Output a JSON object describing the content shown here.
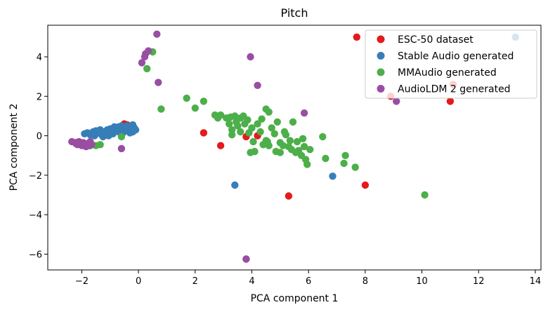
{
  "chart_data": {
    "type": "scatter",
    "title": "Pitch",
    "xlabel": "PCA component 1",
    "ylabel": "PCA component 2",
    "xlim": [
      -3.2,
      14.2
    ],
    "ylim": [
      -6.8,
      5.6
    ],
    "xticks": [
      -2,
      0,
      2,
      4,
      6,
      8,
      10,
      12,
      14
    ],
    "yticks": [
      -6,
      -4,
      -2,
      0,
      2,
      4
    ],
    "xtick_labels": [
      "−2",
      "0",
      "2",
      "4",
      "6",
      "8",
      "10",
      "12",
      "14"
    ],
    "ytick_labels": [
      "−6",
      "−4",
      "−2",
      "0",
      "2",
      "4"
    ],
    "grid": false,
    "legend_position": "top-right",
    "series": [
      {
        "name": "ESC-50 dataset",
        "color": "#e41a1c",
        "points": [
          [
            7.7,
            5.0
          ],
          [
            8.9,
            2.0
          ],
          [
            11.1,
            2.6
          ],
          [
            11.0,
            1.75
          ],
          [
            2.3,
            0.15
          ],
          [
            2.9,
            -0.5
          ],
          [
            8.0,
            -2.5
          ],
          [
            5.3,
            -3.05
          ],
          [
            3.8,
            -6.25
          ],
          [
            3.8,
            -0.05
          ],
          [
            4.2,
            0.0
          ],
          [
            -0.5,
            0.6
          ],
          [
            -0.4,
            0.55
          ],
          [
            -0.85,
            0.35
          ],
          [
            -1.1,
            0.2
          ],
          [
            -0.7,
            0.3
          ],
          [
            -1.9,
            -0.45
          ],
          [
            -2.2,
            -0.35
          ],
          [
            -1.0,
            0.15
          ],
          [
            -0.3,
            0.4
          ]
        ]
      },
      {
        "name": "Stable Audio generated",
        "color": "#377eb8",
        "points": [
          [
            13.3,
            5.0
          ],
          [
            6.85,
            -2.05
          ],
          [
            3.4,
            -2.5
          ],
          [
            -1.9,
            0.1
          ],
          [
            -1.8,
            0.15
          ],
          [
            -1.7,
            0.05
          ],
          [
            -1.6,
            0.2
          ],
          [
            -1.5,
            0.25
          ],
          [
            -1.4,
            0.15
          ],
          [
            -1.3,
            0.05
          ],
          [
            -1.2,
            0.2
          ],
          [
            -1.1,
            0.3
          ],
          [
            -1.0,
            0.35
          ],
          [
            -0.95,
            0.2
          ],
          [
            -0.9,
            0.1
          ],
          [
            -0.85,
            0.25
          ],
          [
            -0.8,
            0.4
          ],
          [
            -0.75,
            0.3
          ],
          [
            -0.7,
            0.2
          ],
          [
            -0.65,
            0.35
          ],
          [
            -0.6,
            0.5
          ],
          [
            -0.55,
            0.15
          ],
          [
            -0.5,
            0.3
          ],
          [
            -0.45,
            0.4
          ],
          [
            -0.4,
            0.25
          ],
          [
            -0.35,
            0.45
          ],
          [
            -0.3,
            0.35
          ],
          [
            -0.25,
            0.5
          ],
          [
            -0.2,
            0.55
          ],
          [
            -0.15,
            0.35
          ],
          [
            -0.1,
            0.3
          ],
          [
            -1.55,
            0.0
          ],
          [
            -1.25,
            -0.05
          ],
          [
            -1.05,
            0.0
          ],
          [
            -0.7,
            0.45
          ],
          [
            -0.3,
            0.15
          ],
          [
            -0.15,
            0.4
          ],
          [
            -0.85,
            0.45
          ],
          [
            -1.35,
            0.3
          ],
          [
            -0.6,
            0.05
          ],
          [
            -0.4,
            0.5
          ],
          [
            -0.2,
            0.2
          ]
        ]
      },
      {
        "name": "MMAudio generated",
        "color": "#4daf4a",
        "points": [
          [
            0.5,
            4.25
          ],
          [
            0.3,
            3.4
          ],
          [
            0.8,
            1.35
          ],
          [
            1.7,
            1.9
          ],
          [
            2.0,
            1.4
          ],
          [
            2.3,
            1.75
          ],
          [
            2.7,
            1.05
          ],
          [
            2.8,
            0.9
          ],
          [
            2.9,
            1.05
          ],
          [
            3.1,
            0.9
          ],
          [
            3.2,
            0.6
          ],
          [
            3.25,
            0.95
          ],
          [
            3.3,
            0.3
          ],
          [
            3.3,
            0.05
          ],
          [
            3.4,
            1.0
          ],
          [
            3.45,
            0.7
          ],
          [
            3.5,
            0.5
          ],
          [
            3.6,
            0.9
          ],
          [
            3.6,
            0.2
          ],
          [
            3.7,
            1.0
          ],
          [
            3.75,
            0.6
          ],
          [
            3.85,
            0.8
          ],
          [
            3.9,
            0.15
          ],
          [
            4.0,
            0.4
          ],
          [
            4.05,
            -0.3
          ],
          [
            4.1,
            -0.8
          ],
          [
            4.2,
            0.6
          ],
          [
            4.3,
            0.2
          ],
          [
            4.35,
            0.85
          ],
          [
            4.4,
            -0.45
          ],
          [
            4.5,
            -0.25
          ],
          [
            4.5,
            1.35
          ],
          [
            4.55,
            -0.3
          ],
          [
            4.6,
            -0.5
          ],
          [
            4.6,
            1.2
          ],
          [
            4.7,
            0.4
          ],
          [
            4.8,
            0.1
          ],
          [
            4.85,
            -0.8
          ],
          [
            4.9,
            0.7
          ],
          [
            5.0,
            -0.85
          ],
          [
            5.0,
            -0.35
          ],
          [
            5.1,
            -0.5
          ],
          [
            5.15,
            0.2
          ],
          [
            5.2,
            0.05
          ],
          [
            5.3,
            -0.55
          ],
          [
            5.35,
            -0.25
          ],
          [
            5.4,
            -0.7
          ],
          [
            5.45,
            0.7
          ],
          [
            5.55,
            -0.85
          ],
          [
            5.6,
            -0.3
          ],
          [
            5.65,
            -0.75
          ],
          [
            5.75,
            -1.0
          ],
          [
            5.8,
            -0.15
          ],
          [
            5.85,
            -0.55
          ],
          [
            5.9,
            -1.2
          ],
          [
            5.95,
            -1.45
          ],
          [
            6.05,
            -0.7
          ],
          [
            6.5,
            -0.05
          ],
          [
            6.6,
            -1.15
          ],
          [
            7.25,
            -1.4
          ],
          [
            7.3,
            -1.0
          ],
          [
            7.65,
            -1.6
          ],
          [
            10.1,
            -3.0
          ],
          [
            -1.9,
            -0.4
          ],
          [
            -1.7,
            -0.5
          ],
          [
            -1.5,
            -0.5
          ],
          [
            -1.35,
            -0.45
          ],
          [
            -0.6,
            -0.05
          ],
          [
            3.95,
            -0.85
          ]
        ]
      },
      {
        "name": "AudioLDM 2 generated",
        "color": "#984ea3",
        "points": [
          [
            0.65,
            5.15
          ],
          [
            0.35,
            4.3
          ],
          [
            0.25,
            4.15
          ],
          [
            0.22,
            4.0
          ],
          [
            0.12,
            3.7
          ],
          [
            0.7,
            2.7
          ],
          [
            3.95,
            4.0
          ],
          [
            4.2,
            2.55
          ],
          [
            5.85,
            1.15
          ],
          [
            9.1,
            1.75
          ],
          [
            3.8,
            -6.25
          ],
          [
            -0.6,
            -0.65
          ],
          [
            -2.35,
            -0.3
          ],
          [
            -2.2,
            -0.4
          ],
          [
            -2.1,
            -0.3
          ],
          [
            -2.0,
            -0.5
          ],
          [
            -1.95,
            -0.35
          ],
          [
            -1.85,
            -0.55
          ],
          [
            -1.8,
            -0.4
          ],
          [
            -1.75,
            -0.5
          ],
          [
            -1.7,
            -0.3
          ],
          [
            -2.15,
            -0.45
          ],
          [
            -1.65,
            -0.45
          ]
        ]
      }
    ]
  }
}
